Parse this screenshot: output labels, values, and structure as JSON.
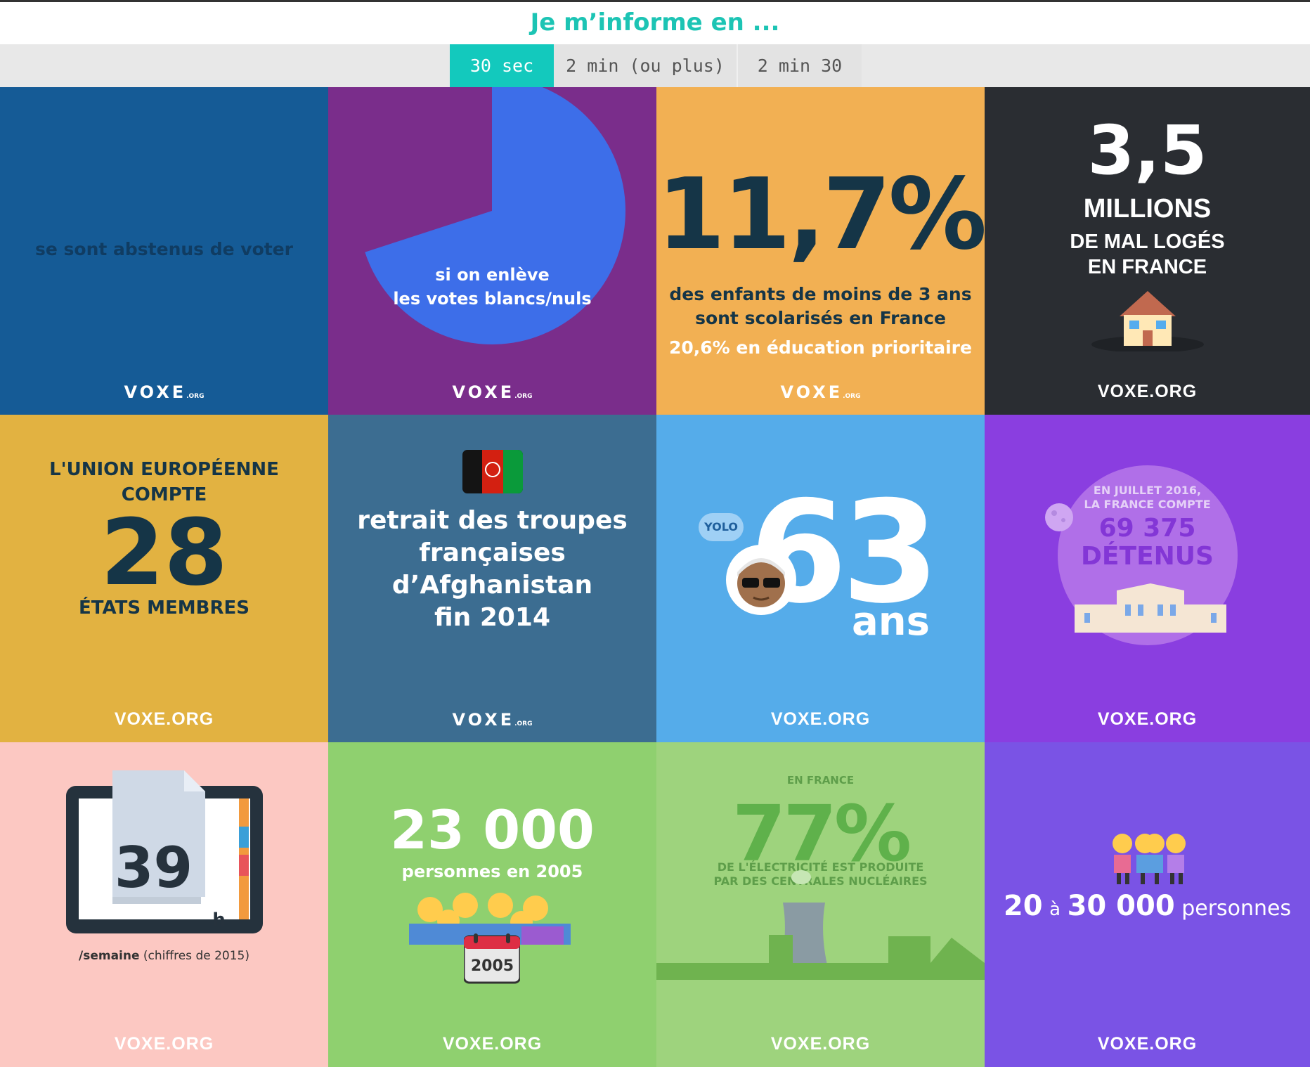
{
  "header": {
    "title": "Je m’informe en ..."
  },
  "tabs": [
    {
      "label": "30 sec",
      "active": true
    },
    {
      "label": "2 min (ou plus)",
      "active": false
    },
    {
      "label": "2 min 30",
      "active": false
    }
  ],
  "brand": {
    "logo_text": "VOXE.ORG",
    "logo_word": "VOXE",
    "logo_suffix": ".ORG"
  },
  "tiles": {
    "abstention": {
      "text": "se sont abstenus de voter",
      "color": "#155b96"
    },
    "votes": {
      "line1": "si on enlève",
      "line2": "les votes blancs/nuls",
      "pie_fraction": 0.7,
      "color": "#7a2d8b",
      "pie_color": "#3d6ee9"
    },
    "scolarisation": {
      "value": "11,7%",
      "line1": "des enfants de moins de 3 ans",
      "line2": "sont scolarisés en France",
      "line3": "20,6% en éducation prioritaire",
      "color": "#f2b053"
    },
    "logement": {
      "value": "3,5",
      "line1": "MILLIONS",
      "line2": "DE MAL LOGÉS",
      "line3": "EN FRANCE",
      "icon": "house-icon",
      "color": "#2a2d32"
    },
    "ue": {
      "line1": "L'UNION EUROPÉENNE",
      "line2": "COMPTE",
      "value": "28",
      "line3": "ÉTATS MEMBRES",
      "color": "#e2b241"
    },
    "afghanistan": {
      "line1": "retrait des troupes",
      "line2": "françaises",
      "line3": "d’Afghanistan",
      "line4": "fin 2014",
      "icon": "afghanistan-flag-icon",
      "color": "#3c6d91"
    },
    "age": {
      "bubble": "YOLO",
      "value": "63",
      "unit": "ans",
      "icon": "old-man-sunglasses-icon",
      "color": "#55acea"
    },
    "detenus": {
      "line1": "EN JUILLET 2016,",
      "line2": "LA FRANCE COMPTE",
      "line3": "69 375",
      "line4": "DÉTENUS",
      "icon": "prison-building-icon",
      "color": "#8a3ee0"
    },
    "travail": {
      "value": "39",
      "unit": "h",
      "caption_bold": "/semaine",
      "caption": "(chiffres de 2015)",
      "icon": "calendar-icon",
      "color": "#fcc8c2"
    },
    "personnes2005": {
      "value": "23 000",
      "line1": "personnes en 2005",
      "calendar": "2005",
      "icon": "family-group-icon",
      "color": "#8fd06f"
    },
    "nucleaire": {
      "line0": "EN FRANCE",
      "value": "77%",
      "line1": "DE L'ÉLECTRICITÉ EST PRODUITE",
      "line2": "PAR DES CENTRALES NUCLÉAIRES",
      "icon": "nuclear-plant-icon",
      "color": "#9ed37d"
    },
    "personnes": {
      "num1": "20",
      "mid": "à",
      "num2": "30 000",
      "word": "personnes",
      "icon": "women-group-icon",
      "color": "#7a53e5"
    }
  }
}
